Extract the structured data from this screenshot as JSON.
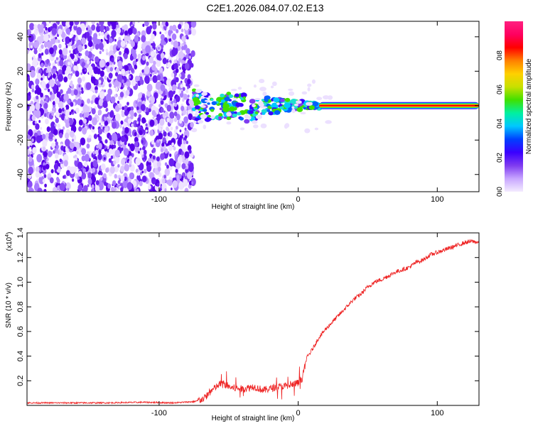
{
  "title": "C2E1.2026.084.07.02.E13",
  "chart_data": [
    {
      "type": "heatmap",
      "name": "spectrogram",
      "xlabel": "Height of straight line (km)",
      "ylabel": "Frequency (Hz)",
      "xlim": [
        -195,
        130
      ],
      "ylim": [
        -50,
        49
      ],
      "xticks": [
        -100,
        0,
        100
      ],
      "xtick_labels": [
        "-100",
        "0",
        "100"
      ],
      "yticks": [
        -40,
        -20,
        0,
        20,
        40
      ],
      "ytick_labels": [
        "-40",
        "-20",
        "0",
        "20",
        "40"
      ],
      "noise_region": {
        "x_from": -195,
        "x_to": -75,
        "amplitude": 0.1
      },
      "signal_line": {
        "freq": 0,
        "x_from": 15,
        "x_to": 130,
        "amplitude": 0.95
      },
      "transition_region": {
        "x_from": -75,
        "x_to": 15,
        "freq_spread": [
          -12,
          8
        ]
      },
      "colorbar": {
        "label": "Normalized spectral amplitude",
        "range": [
          0,
          1
        ],
        "ticks": [
          0.0,
          0.2,
          0.4,
          0.6,
          0.8
        ],
        "tick_labels": [
          "0.0",
          "0.2",
          "0.4",
          "0.6",
          "0.8"
        ],
        "colors": [
          "#f4ecff",
          "#c8a6ff",
          "#7f3bf0",
          "#3a00ff",
          "#0040ff",
          "#00c8ff",
          "#00f0a0",
          "#40e000",
          "#c8e000",
          "#ffd000",
          "#ff8000",
          "#ff0000",
          "#ff0060",
          "#ff2080"
        ]
      }
    },
    {
      "type": "line",
      "name": "snr",
      "xlabel": "Height of straight line (km)",
      "ylabel": "SNR (10 * v/v)",
      "multiplier_label": "(x10",
      "multiplier_exp": "4",
      "multiplier_close": ")",
      "xlim": [
        -195,
        130
      ],
      "ylim": [
        0,
        1.4
      ],
      "xticks": [
        -100,
        0,
        100
      ],
      "xtick_labels": [
        "-100",
        "0",
        "100"
      ],
      "yticks": [
        0.2,
        0.4,
        0.6,
        0.8,
        1.0,
        1.2,
        1.4
      ],
      "ytick_labels": [
        "0.2",
        "0.4",
        "0.6",
        "0.8",
        "1.0",
        "1.2",
        "1.4"
      ],
      "color": "#ee2222",
      "series": [
        {
          "name": "SNR",
          "x": [
            -195,
            -170,
            -140,
            -110,
            -90,
            -75,
            -68,
            -62,
            -55,
            -48,
            -40,
            -32,
            -25,
            -18,
            -12,
            -5,
            0,
            3,
            6,
            10,
            15,
            20,
            25,
            30,
            35,
            40,
            45,
            50,
            55,
            60,
            65,
            70,
            75,
            80,
            85,
            90,
            95,
            100,
            105,
            110,
            115,
            120,
            125,
            130
          ],
          "values": [
            0.02,
            0.02,
            0.02,
            0.025,
            0.02,
            0.03,
            0.05,
            0.12,
            0.18,
            0.14,
            0.13,
            0.15,
            0.12,
            0.14,
            0.15,
            0.16,
            0.18,
            0.22,
            0.38,
            0.45,
            0.55,
            0.62,
            0.68,
            0.74,
            0.8,
            0.86,
            0.9,
            0.96,
            1.0,
            1.02,
            1.05,
            1.08,
            1.1,
            1.12,
            1.16,
            1.18,
            1.22,
            1.24,
            1.26,
            1.28,
            1.3,
            1.32,
            1.33,
            1.32
          ]
        }
      ]
    }
  ]
}
